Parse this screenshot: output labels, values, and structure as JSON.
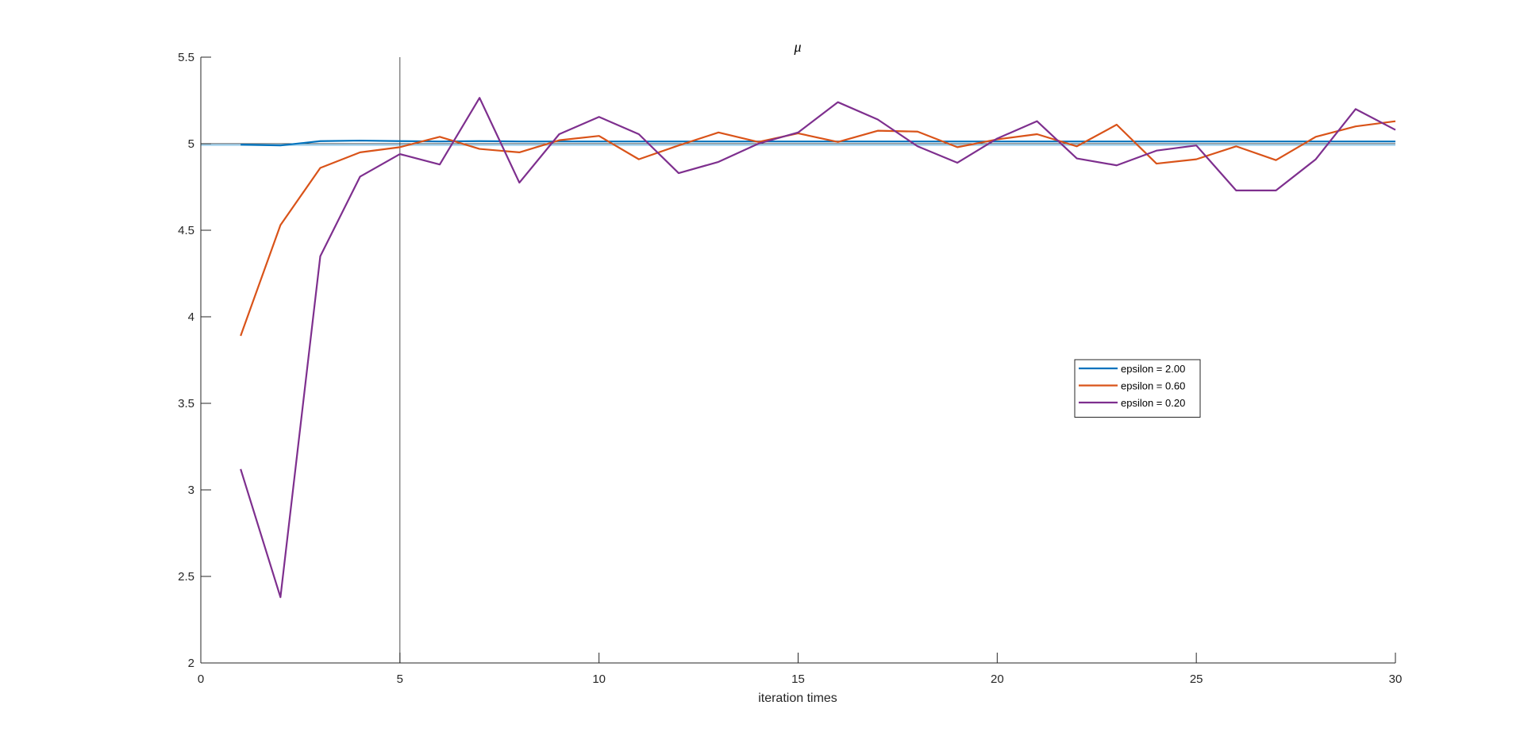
{
  "chart_data": {
    "type": "line",
    "title": "μ",
    "xlabel": "iteration times",
    "ylabel": "",
    "xlim": [
      0,
      30
    ],
    "ylim": [
      2,
      5.5
    ],
    "xticks": [
      0,
      5,
      10,
      15,
      20,
      25,
      30
    ],
    "xtick_labels": [
      "0",
      "5",
      "10",
      "15",
      "20",
      "25",
      "30"
    ],
    "yticks": [
      2,
      2.5,
      3,
      3.5,
      4,
      4.5,
      5,
      5.5
    ],
    "ytick_labels": [
      "2",
      "2.5",
      "3",
      "3.5",
      "4",
      "4.5",
      "5",
      "5.5"
    ],
    "grid": false,
    "legend_position": "center-right",
    "reference_lines": [
      {
        "orientation": "horizontal",
        "value": 5,
        "color": "#3c3c3c"
      },
      {
        "orientation": "horizontal",
        "value": 5.0,
        "color": "#a6d4ee"
      },
      {
        "orientation": "vertical",
        "value": 5,
        "color": "#3c3c3c"
      }
    ],
    "x": [
      1,
      2,
      3,
      4,
      5,
      6,
      7,
      8,
      9,
      10,
      11,
      12,
      13,
      14,
      15,
      16,
      17,
      18,
      19,
      20,
      21,
      22,
      23,
      24,
      25,
      26,
      27,
      28,
      29,
      30
    ],
    "series": [
      {
        "name": "epsilon = 2.00",
        "color": "#0072bd",
        "values": [
          4.995,
          4.99,
          5.015,
          5.018,
          5.015,
          5.013,
          5.015,
          5.013,
          5.013,
          5.013,
          5.013,
          5.013,
          5.013,
          5.013,
          5.013,
          5.013,
          5.013,
          5.013,
          5.013,
          5.013,
          5.013,
          5.013,
          5.013,
          5.013,
          5.013,
          5.013,
          5.013,
          5.013,
          5.013,
          5.013
        ]
      },
      {
        "name": "epsilon = 0.60",
        "color": "#d95319",
        "values": [
          3.89,
          4.53,
          4.86,
          4.95,
          4.98,
          5.04,
          4.97,
          4.95,
          5.02,
          5.045,
          4.91,
          4.99,
          5.065,
          5.01,
          5.06,
          5.01,
          5.075,
          5.07,
          4.98,
          5.025,
          5.055,
          4.985,
          5.11,
          4.885,
          4.91,
          4.985,
          4.905,
          5.04,
          5.1,
          5.13
        ]
      },
      {
        "name": "epsilon = 0.20",
        "color": "#7e2f8e",
        "values": [
          3.12,
          2.38,
          4.35,
          4.81,
          4.94,
          4.88,
          5.265,
          4.775,
          5.055,
          5.155,
          5.055,
          4.83,
          4.895,
          5.0,
          5.065,
          5.24,
          5.14,
          4.985,
          4.89,
          5.03,
          5.13,
          4.915,
          4.875,
          4.96,
          4.99,
          4.73,
          4.73,
          4.91,
          5.2,
          5.08
        ]
      }
    ]
  }
}
